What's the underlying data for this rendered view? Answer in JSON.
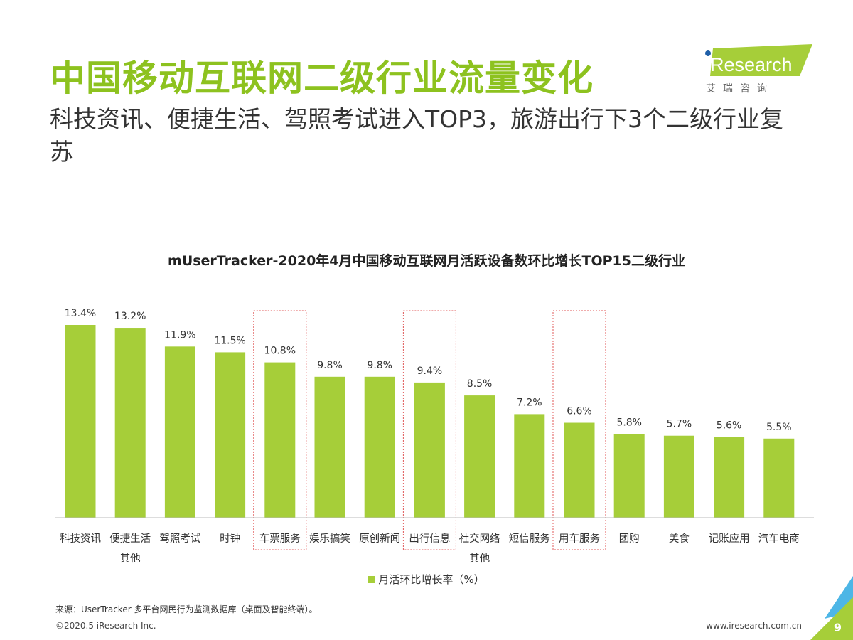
{
  "header": {
    "title": "中国移动互联网二级行业流量变化",
    "subtitle": "科技资讯、便捷生活、驾照考试进入TOP3，旅游出行下3个二级行业复苏"
  },
  "logo": {
    "text": "iResearch",
    "cn": "艾 瑞 咨 询"
  },
  "colors": {
    "accent": "#8dc21f",
    "bar": "#a6ce39",
    "highlight_box": "#e05a5a"
  },
  "chart_data": {
    "type": "bar",
    "title": "mUserTracker-2020年4月中国移动互联网月活跃设备数环比增长TOP15二级行业",
    "categories": [
      "科技资讯",
      "便捷生活其他",
      "驾照考试",
      "时钟",
      "车票服务",
      "娱乐搞笑",
      "原创新闻",
      "出行信息",
      "社交网络其他",
      "短信服务",
      "用车服务",
      "团购",
      "美食",
      "记账应用",
      "汽车电商"
    ],
    "category_lines": [
      [
        "科技资讯"
      ],
      [
        "便捷生活",
        "其他"
      ],
      [
        "驾照考试"
      ],
      [
        "时钟"
      ],
      [
        "车票服务"
      ],
      [
        "娱乐搞笑"
      ],
      [
        "原创新闻"
      ],
      [
        "出行信息"
      ],
      [
        "社交网络",
        "其他"
      ],
      [
        "短信服务"
      ],
      [
        "用车服务"
      ],
      [
        "团购"
      ],
      [
        "美食"
      ],
      [
        "记账应用"
      ],
      [
        "汽车电商"
      ]
    ],
    "series": [
      {
        "name": "月活环比增长率（%）",
        "values": [
          13.4,
          13.2,
          11.9,
          11.5,
          10.8,
          9.8,
          9.8,
          9.4,
          8.5,
          7.2,
          6.6,
          5.8,
          5.7,
          5.6,
          5.5
        ]
      }
    ],
    "data_labels": [
      "13.4%",
      "13.2%",
      "11.9%",
      "11.5%",
      "10.8%",
      "9.8%",
      "9.8%",
      "9.4%",
      "8.5%",
      "7.2%",
      "6.6%",
      "5.8%",
      "5.7%",
      "5.6%",
      "5.5%"
    ],
    "highlighted": [
      "车票服务",
      "出行信息",
      "用车服务"
    ],
    "ylim": [
      0,
      13.4
    ],
    "grid": false,
    "legend": "bottom"
  },
  "footer": {
    "source": "来源：UserTracker 多平台网民行为监测数据库（桌面及智能终端）。",
    "copyright": "©2020.5 iResearch Inc.",
    "url": "www.iresearch.com.cn",
    "page": "9"
  }
}
